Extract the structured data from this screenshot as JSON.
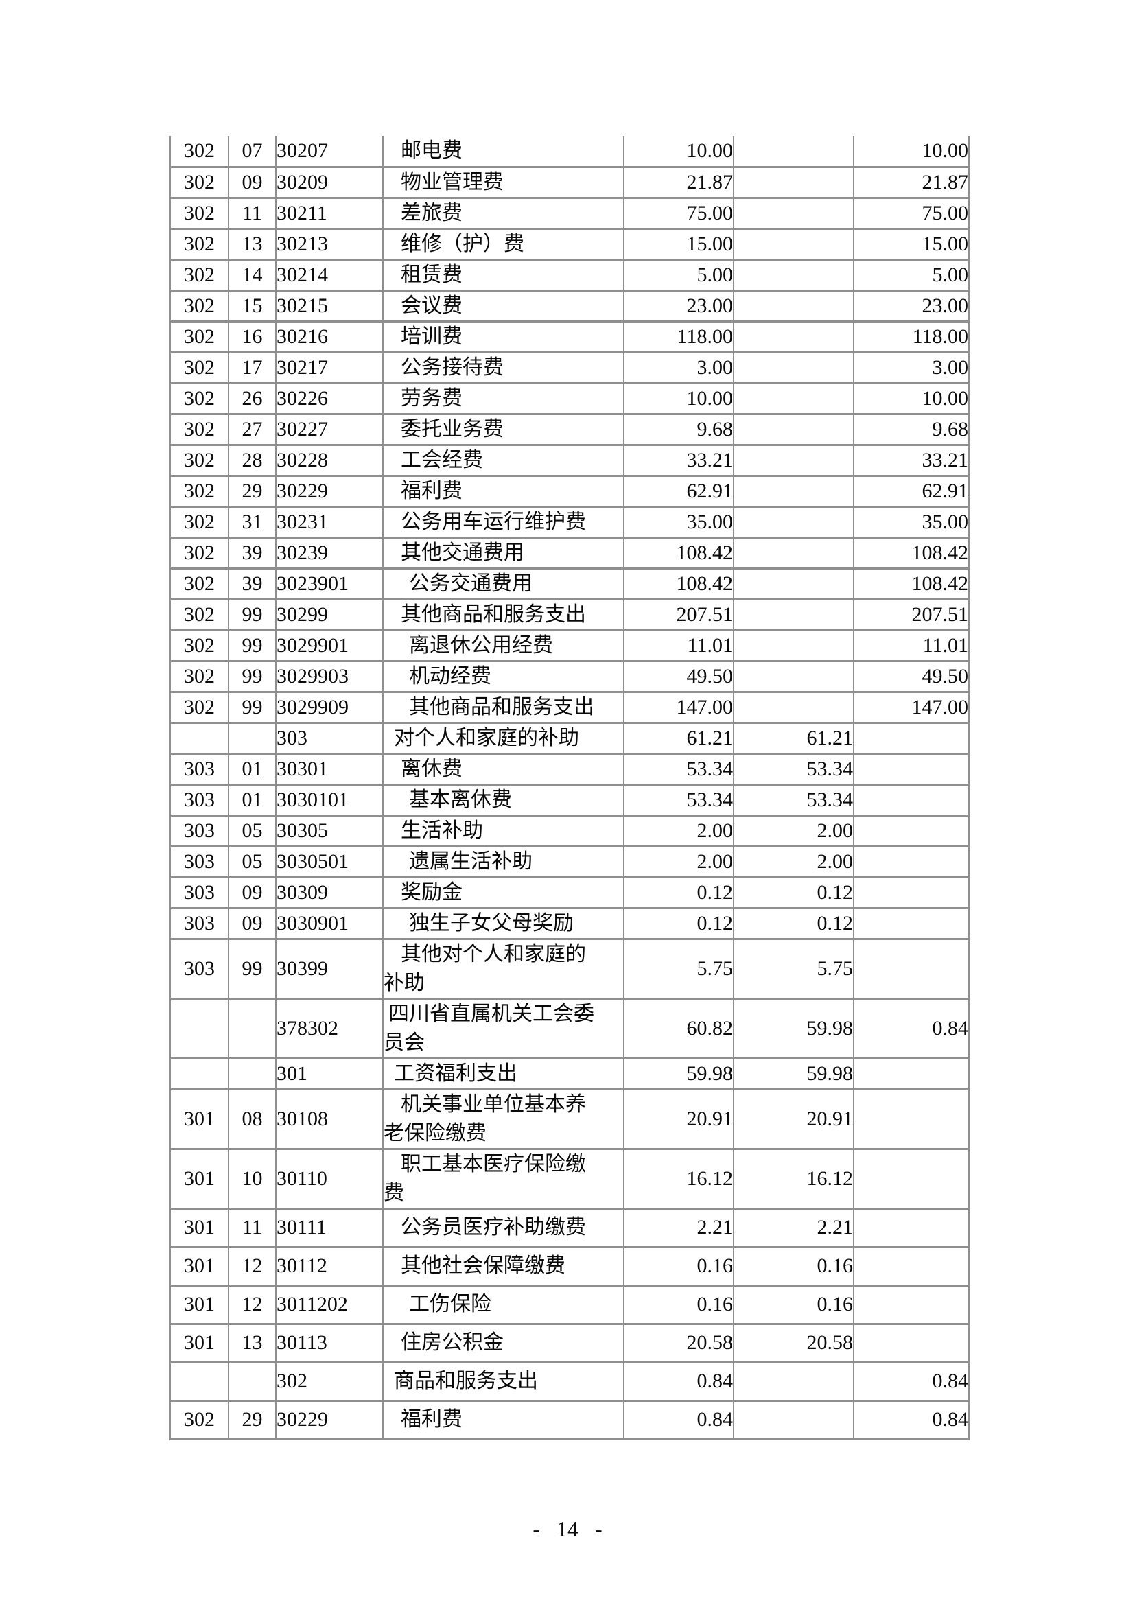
{
  "page": {
    "number_label": "- 14 -"
  },
  "table": {
    "rows": [
      {
        "code1": "302",
        "code2": "07",
        "code3": "30207",
        "indent": 2,
        "name": "邮电费",
        "v1": "10.00",
        "v2": "",
        "v3": "10.00"
      },
      {
        "code1": "302",
        "code2": "09",
        "code3": "30209",
        "indent": 2,
        "name": "物业管理费",
        "v1": "21.87",
        "v2": "",
        "v3": "21.87"
      },
      {
        "code1": "302",
        "code2": "11",
        "code3": "30211",
        "indent": 2,
        "name": "差旅费",
        "v1": "75.00",
        "v2": "",
        "v3": "75.00"
      },
      {
        "code1": "302",
        "code2": "13",
        "code3": "30213",
        "indent": 2,
        "name": "维修（护）费",
        "v1": "15.00",
        "v2": "",
        "v3": "15.00"
      },
      {
        "code1": "302",
        "code2": "14",
        "code3": "30214",
        "indent": 2,
        "name": "租赁费",
        "v1": "5.00",
        "v2": "",
        "v3": "5.00"
      },
      {
        "code1": "302",
        "code2": "15",
        "code3": "30215",
        "indent": 2,
        "name": "会议费",
        "v1": "23.00",
        "v2": "",
        "v3": "23.00"
      },
      {
        "code1": "302",
        "code2": "16",
        "code3": "30216",
        "indent": 2,
        "name": "培训费",
        "v1": "118.00",
        "v2": "",
        "v3": "118.00"
      },
      {
        "code1": "302",
        "code2": "17",
        "code3": "30217",
        "indent": 2,
        "name": "公务接待费",
        "v1": "3.00",
        "v2": "",
        "v3": "3.00"
      },
      {
        "code1": "302",
        "code2": "26",
        "code3": "30226",
        "indent": 2,
        "name": "劳务费",
        "v1": "10.00",
        "v2": "",
        "v3": "10.00"
      },
      {
        "code1": "302",
        "code2": "27",
        "code3": "30227",
        "indent": 2,
        "name": "委托业务费",
        "v1": "9.68",
        "v2": "",
        "v3": "9.68"
      },
      {
        "code1": "302",
        "code2": "28",
        "code3": "30228",
        "indent": 2,
        "name": "工会经费",
        "v1": "33.21",
        "v2": "",
        "v3": "33.21"
      },
      {
        "code1": "302",
        "code2": "29",
        "code3": "30229",
        "indent": 2,
        "name": "福利费",
        "v1": "62.91",
        "v2": "",
        "v3": "62.91"
      },
      {
        "code1": "302",
        "code2": "31",
        "code3": "30231",
        "indent": 2,
        "name": "公务用车运行维护费",
        "v1": "35.00",
        "v2": "",
        "v3": "35.00"
      },
      {
        "code1": "302",
        "code2": "39",
        "code3": "30239",
        "indent": 2,
        "name": "其他交通费用",
        "v1": "108.42",
        "v2": "",
        "v3": "108.42"
      },
      {
        "code1": "302",
        "code2": "39",
        "code3": "3023901",
        "indent": 3,
        "name": "公务交通费用",
        "v1": "108.42",
        "v2": "",
        "v3": "108.42"
      },
      {
        "code1": "302",
        "code2": "99",
        "code3": "30299",
        "indent": 2,
        "name": "其他商品和服务支出",
        "v1": "207.51",
        "v2": "",
        "v3": "207.51"
      },
      {
        "code1": "302",
        "code2": "99",
        "code3": "3029901",
        "indent": 3,
        "name": "离退休公用经费",
        "v1": "11.01",
        "v2": "",
        "v3": "11.01"
      },
      {
        "code1": "302",
        "code2": "99",
        "code3": "3029903",
        "indent": 3,
        "name": "机动经费",
        "v1": "49.50",
        "v2": "",
        "v3": "49.50"
      },
      {
        "code1": "302",
        "code2": "99",
        "code3": "3029909",
        "indent": 3,
        "name": "其他商品和服务支出",
        "v1": "147.00",
        "v2": "",
        "v3": "147.00"
      },
      {
        "code1": "",
        "code2": "",
        "code3": "303",
        "indent": 1,
        "name": "对个人和家庭的补助",
        "v1": "61.21",
        "v2": "61.21",
        "v3": ""
      },
      {
        "code1": "303",
        "code2": "01",
        "code3": "30301",
        "indent": 2,
        "name": "离休费",
        "v1": "53.34",
        "v2": "53.34",
        "v3": ""
      },
      {
        "code1": "303",
        "code2": "01",
        "code3": "3030101",
        "indent": 3,
        "name": "基本离休费",
        "v1": "53.34",
        "v2": "53.34",
        "v3": ""
      },
      {
        "code1": "303",
        "code2": "05",
        "code3": "30305",
        "indent": 2,
        "name": "生活补助",
        "v1": "2.00",
        "v2": "2.00",
        "v3": ""
      },
      {
        "code1": "303",
        "code2": "05",
        "code3": "3030501",
        "indent": 3,
        "name": "遗属生活补助",
        "v1": "2.00",
        "v2": "2.00",
        "v3": ""
      },
      {
        "code1": "303",
        "code2": "09",
        "code3": "30309",
        "indent": 2,
        "name": "奖励金",
        "v1": "0.12",
        "v2": "0.12",
        "v3": ""
      },
      {
        "code1": "303",
        "code2": "09",
        "code3": "3030901",
        "indent": 3,
        "name": "独生子女父母奖励",
        "v1": "0.12",
        "v2": "0.12",
        "v3": ""
      },
      {
        "code1": "303",
        "code2": "99",
        "code3": "30399",
        "indent": 2,
        "name": "其他对个人和家庭的\n补助",
        "v1": "5.75",
        "v2": "5.75",
        "v3": ""
      },
      {
        "code1": "",
        "code2": "",
        "code3": "378302",
        "indent": 0,
        "name": "四川省直属机关工会委\n员会",
        "v1": "60.82",
        "v2": "59.98",
        "v3": "0.84"
      },
      {
        "code1": "",
        "code2": "",
        "code3": "301",
        "indent": 1,
        "name": "工资福利支出",
        "v1": "59.98",
        "v2": "59.98",
        "v3": ""
      },
      {
        "code1": "301",
        "code2": "08",
        "code3": "30108",
        "indent": 2,
        "name": "机关事业单位基本养\n老保险缴费",
        "v1": "20.91",
        "v2": "20.91",
        "v3": ""
      },
      {
        "code1": "301",
        "code2": "10",
        "code3": "30110",
        "indent": 2,
        "name": "职工基本医疗保险缴\n费",
        "v1": "16.12",
        "v2": "16.12",
        "v3": ""
      },
      {
        "code1": "301",
        "code2": "11",
        "code3": "30111",
        "indent": 2,
        "name": "公务员医疗补助缴费",
        "v1": "2.21",
        "v2": "2.21",
        "v3": ""
      },
      {
        "code1": "301",
        "code2": "12",
        "code3": "30112",
        "indent": 2,
        "name": "其他社会保障缴费",
        "v1": "0.16",
        "v2": "0.16",
        "v3": ""
      },
      {
        "code1": "301",
        "code2": "12",
        "code3": "3011202",
        "indent": 3,
        "name": "工伤保险",
        "v1": "0.16",
        "v2": "0.16",
        "v3": ""
      },
      {
        "code1": "301",
        "code2": "13",
        "code3": "30113",
        "indent": 2,
        "name": "住房公积金",
        "v1": "20.58",
        "v2": "20.58",
        "v3": ""
      },
      {
        "code1": "",
        "code2": "",
        "code3": "302",
        "indent": 1,
        "name": "商品和服务支出",
        "v1": "0.84",
        "v2": "",
        "v3": "0.84"
      },
      {
        "code1": "302",
        "code2": "29",
        "code3": "30229",
        "indent": 2,
        "name": "福利费",
        "v1": "0.84",
        "v2": "",
        "v3": "0.84"
      }
    ]
  }
}
